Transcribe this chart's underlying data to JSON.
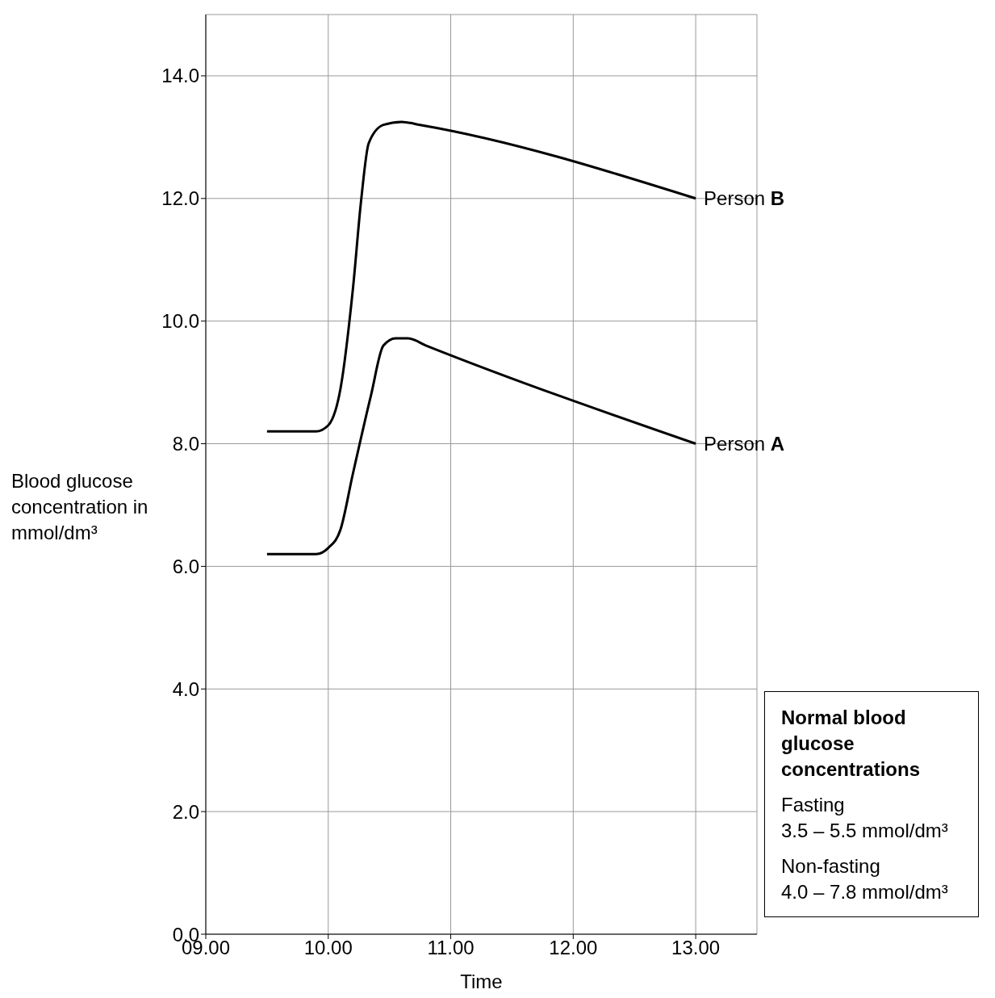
{
  "chart_data": {
    "type": "line",
    "xlabel": "Time",
    "ylabel": "Blood glucose concentration in mmol/dm³",
    "xlim": [
      9,
      13.5
    ],
    "xticks": [
      {
        "value": 9,
        "label": "09.00"
      },
      {
        "value": 10,
        "label": "10.00"
      },
      {
        "value": 11,
        "label": "11.00"
      },
      {
        "value": 12,
        "label": "12.00"
      },
      {
        "value": 13,
        "label": "13.00"
      }
    ],
    "ylim": [
      0,
      15
    ],
    "yticks": [
      {
        "value": 0,
        "label": "0.0"
      },
      {
        "value": 2,
        "label": "2.0"
      },
      {
        "value": 4,
        "label": "4.0"
      },
      {
        "value": 6,
        "label": "6.0"
      },
      {
        "value": 8,
        "label": "8.0"
      },
      {
        "value": 10,
        "label": "10.0"
      },
      {
        "value": 12,
        "label": "12.0"
      },
      {
        "value": 14,
        "label": "14.0"
      }
    ],
    "grid": true,
    "legend": false,
    "marker": "none",
    "line_style": "solid",
    "series": [
      {
        "name": "Person B",
        "color": "#000000",
        "x": [
          9.5,
          9.9,
          10.0,
          10.1,
          10.2,
          10.27,
          10.33,
          10.45,
          10.6,
          10.75,
          13.0
        ],
        "values": [
          8.2,
          8.2,
          8.3,
          8.9,
          10.5,
          12.0,
          12.9,
          13.2,
          13.25,
          13.2,
          12.0
        ]
      },
      {
        "name": "Person A",
        "color": "#000000",
        "x": [
          9.5,
          9.9,
          10.0,
          10.1,
          10.2,
          10.35,
          10.45,
          10.55,
          10.65,
          10.8,
          13.0
        ],
        "values": [
          6.2,
          6.2,
          6.3,
          6.6,
          7.5,
          8.8,
          9.6,
          9.72,
          9.72,
          9.6,
          8.0
        ]
      }
    ],
    "annotations": [
      "Normal blood glucose concentrations",
      "Fasting",
      "3.5 – 5.5 mmol/dm³",
      "Non-fasting",
      "4.0 – 7.8 mmol/dm³"
    ]
  }
}
